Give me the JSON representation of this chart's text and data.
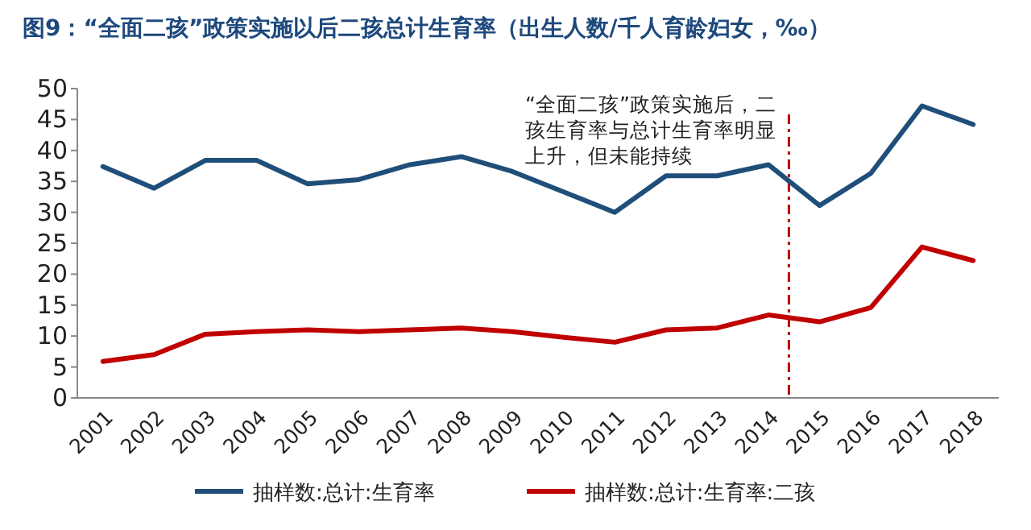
{
  "chart_data": {
    "type": "line",
    "title": "图9：“全面二孩”政策实施以后二孩总计生育率（出生人数/千人育龄妇女，‰）",
    "x": [
      2001,
      2002,
      2003,
      2004,
      2005,
      2006,
      2007,
      2008,
      2009,
      2010,
      2011,
      2012,
      2013,
      2014,
      2015,
      2016,
      2017,
      2018
    ],
    "xlim": [
      2000.5,
      2018.5
    ],
    "xticks": [
      2001,
      2002,
      2003,
      2004,
      2005,
      2006,
      2007,
      2008,
      2009,
      2010,
      2011,
      2012,
      2013,
      2014,
      2015,
      2016,
      2017,
      2018
    ],
    "ylim": [
      0,
      50
    ],
    "yticks": [
      0,
      5,
      10,
      15,
      20,
      25,
      30,
      35,
      40,
      45,
      50
    ],
    "series": [
      {
        "name": "抽样数:总计:生育率",
        "color": "#1f4e79",
        "values": [
          37.4,
          33.9,
          38.4,
          38.4,
          34.6,
          35.3,
          37.7,
          39.0,
          36.6,
          33.3,
          30.0,
          35.9,
          35.9,
          37.7,
          31.1,
          36.3,
          47.2,
          44.2
        ]
      },
      {
        "name": "抽样数:总计:生育率:二孩",
        "color": "#c00000",
        "values": [
          5.9,
          7.0,
          10.3,
          10.7,
          11.0,
          10.7,
          11.0,
          11.3,
          10.7,
          9.8,
          9.0,
          11.0,
          11.3,
          13.4,
          12.3,
          14.6,
          24.4,
          22.2
        ]
      }
    ],
    "ref_lines": [
      {
        "axis": "x",
        "value": 2014.4,
        "color": "#c00000",
        "line_style": "dashdot"
      }
    ],
    "annotations": [
      "“全面二孩”政策实施后，二孩生育率与总计生育率明显上升，但未能持续"
    ],
    "line_style": "solid",
    "grid": false,
    "legend": "bottom"
  }
}
